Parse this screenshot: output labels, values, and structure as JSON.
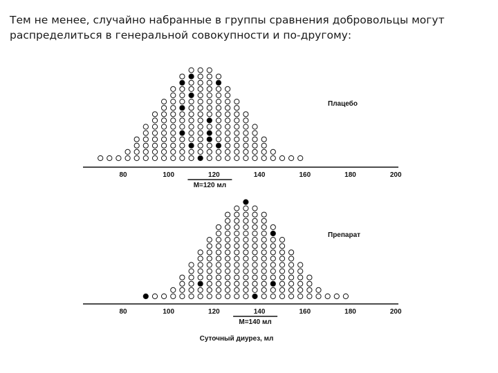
{
  "heading": {
    "line1": "Тем не менее, случайно набранные в группы сравнения добровольцы могут",
    "line2": "распределиться в генеральной совокупности и по-другому:"
  },
  "axis": {
    "ticks": [
      "80",
      "100",
      "120",
      "140",
      "160",
      "180",
      "200"
    ],
    "tick_values": [
      80,
      100,
      120,
      140,
      160,
      180,
      200
    ],
    "caption": "Суточный диурез, мл"
  },
  "colors": {
    "ink": "#111111",
    "marker_fill": "#000000",
    "dot_fill": "#ffffffff"
  },
  "panels": [
    {
      "label": "Плацебо",
      "mean_label": "M=120 мл",
      "mean_value": 120,
      "column_counts": [
        1,
        1,
        1,
        2,
        4,
        6,
        8,
        10,
        12,
        14,
        15,
        15,
        15,
        14,
        12,
        10,
        8,
        6,
        4,
        2,
        1,
        1,
        1
      ],
      "column_start": 70,
      "column_step": 4,
      "filled": [
        [
          100,
          1
        ],
        [
          106,
          5
        ],
        [
          106,
          9
        ],
        [
          106,
          13
        ],
        [
          110,
          3
        ],
        [
          110,
          11
        ],
        [
          110,
          14
        ],
        [
          114,
          1
        ],
        [
          118,
          4
        ],
        [
          118,
          5
        ],
        [
          118,
          7
        ],
        [
          122,
          3
        ],
        [
          122,
          13
        ]
      ]
    },
    {
      "label": "Препарат",
      "mean_label": "M=140 мл",
      "mean_value": 140,
      "column_counts": [
        1,
        1,
        1,
        2,
        4,
        6,
        8,
        10,
        12,
        14,
        15,
        16,
        15,
        14,
        12,
        10,
        8,
        6,
        4,
        2,
        1,
        1,
        1
      ],
      "column_start": 90,
      "column_step": 4,
      "filled": [
        [
          90,
          1
        ],
        [
          108,
          3
        ],
        [
          114,
          3
        ],
        [
          134,
          16
        ],
        [
          138,
          1
        ],
        [
          146,
          3
        ],
        [
          146,
          11
        ],
        [
          148,
          3
        ],
        [
          152,
          2
        ],
        [
          152,
          4
        ],
        [
          180,
          1
        ]
      ]
    }
  ]
}
